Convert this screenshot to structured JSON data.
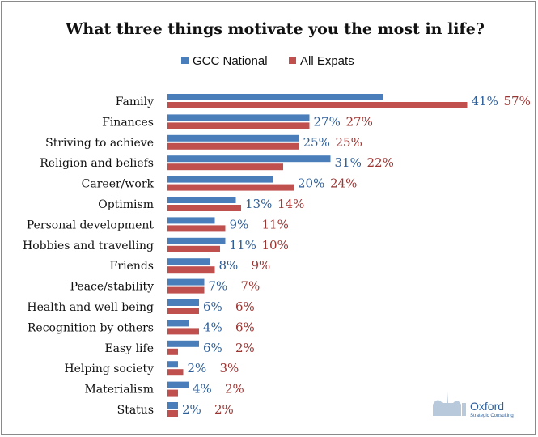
{
  "chart_data": {
    "type": "bar",
    "orientation": "horizontal",
    "title": "What three things motivate you the most in life?",
    "categories": [
      "Family",
      "Finances",
      "Striving to achieve",
      "Religion and beliefs",
      "Career/work",
      "Optimism",
      "Personal development",
      "Hobbies and travelling",
      "Friends",
      "Peace/stability",
      "Health and well being",
      "Recognition by others",
      "Easy life",
      "Helping society",
      "Materialism",
      "Status"
    ],
    "series": [
      {
        "name": "GCC National",
        "color": "#4a7ebb",
        "values": [
          41,
          27,
          25,
          31,
          20,
          13,
          9,
          11,
          8,
          7,
          6,
          4,
          6,
          2,
          4,
          2
        ]
      },
      {
        "name": "All Expats",
        "color": "#c0504d",
        "values": [
          57,
          27,
          25,
          22,
          24,
          14,
          11,
          10,
          9,
          7,
          6,
          6,
          2,
          3,
          2,
          2
        ]
      }
    ],
    "value_suffix": "%",
    "xlim": [
      0,
      60
    ],
    "legend_position": "top",
    "grid": false
  },
  "logo": {
    "name": "Oxford",
    "subtitle": "Strategic Consulting"
  }
}
